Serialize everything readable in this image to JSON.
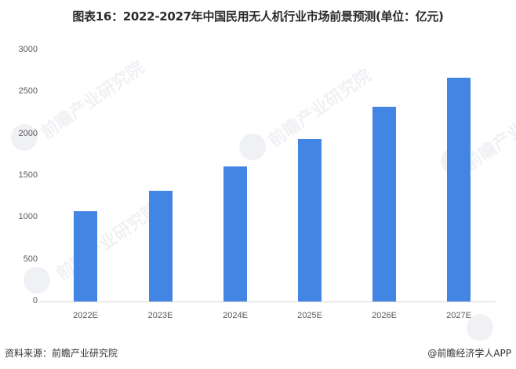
{
  "title": "图表16：2022-2027年中国民用无人机行业市场前景预测(单位：亿元)",
  "footer": {
    "source": "资料来源：前瞻产业研究院",
    "credit": "@前瞻经济学人APP"
  },
  "watermark": "前瞻产业研究院",
  "colors": {
    "bar": "#4285E3",
    "axis": "#d9d9d9"
  },
  "chart_data": {
    "type": "bar",
    "title": "图表16：2022-2027年中国民用无人机行业市场前景预测(单位：亿元)",
    "xlabel": "",
    "ylabel": "",
    "categories": [
      "2022E",
      "2023E",
      "2024E",
      "2025E",
      "2026E",
      "2027E"
    ],
    "values": [
      1078,
      1322,
      1612,
      1940,
      2325,
      2671
    ],
    "yticks": [
      "0",
      "500",
      "1000",
      "1500",
      "2000",
      "2500",
      "3000"
    ],
    "ylim": [
      0,
      3000
    ],
    "grid": false,
    "legend": null
  }
}
